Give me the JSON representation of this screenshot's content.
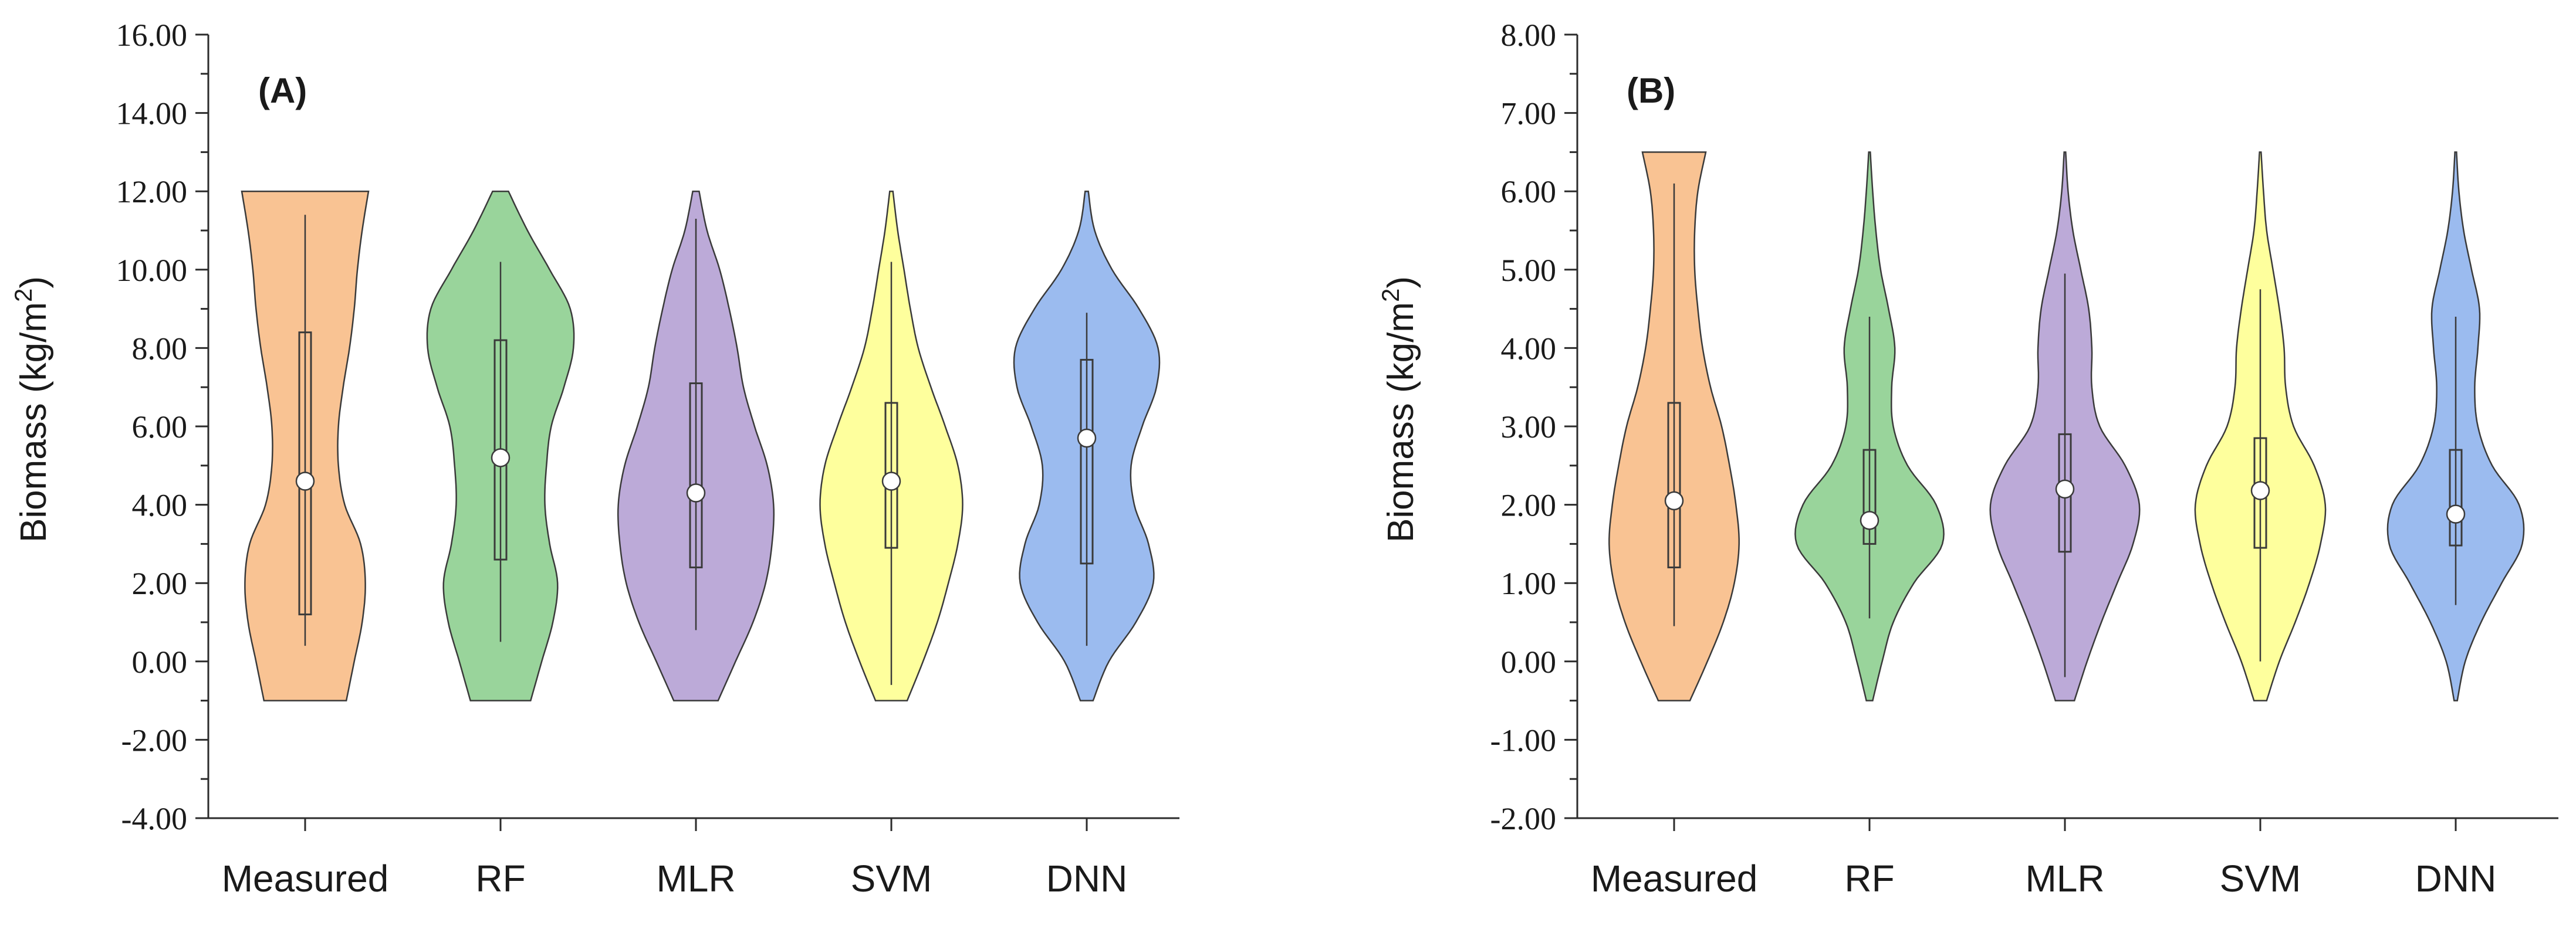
{
  "colors": {
    "Measured": "#f9c393",
    "RF": "#99d49b",
    "MLR": "#bcaad8",
    "SVM": "#feff9d",
    "DNN": "#9bbbef"
  },
  "chart_data": [
    {
      "type": "violin",
      "panel_label": "(A)",
      "title": "",
      "xlabel": "",
      "ylabel": "Biomass (kg/m",
      "ylabel_sup": "2",
      "ylabel_close": ")",
      "ylim": [
        -4,
        16
      ],
      "yticks": [
        "-4.00",
        "-2.00",
        "0.00",
        "2.00",
        "4.00",
        "6.00",
        "8.00",
        "10.00",
        "12.00",
        "14.00",
        "16.00"
      ],
      "categories": [
        "Measured",
        "RF",
        "MLR",
        "SVM",
        "DNN"
      ],
      "violins": [
        {
          "name": "Measured",
          "min": -1,
          "max": 12,
          "whisker_low": 0.4,
          "whisker_high": 11.4,
          "q1": 1.2,
          "q3": 8.4,
          "median": 4.6,
          "density": [
            [
              -1,
              0.52
            ],
            [
              0,
              0.62
            ],
            [
              1,
              0.72
            ],
            [
              2,
              0.76
            ],
            [
              3,
              0.7
            ],
            [
              4,
              0.5
            ],
            [
              5,
              0.42
            ],
            [
              6,
              0.42
            ],
            [
              7,
              0.48
            ],
            [
              8,
              0.56
            ],
            [
              9,
              0.62
            ],
            [
              10,
              0.66
            ],
            [
              11,
              0.72
            ],
            [
              12,
              0.8
            ]
          ]
        },
        {
          "name": "RF",
          "min": -1,
          "max": 12,
          "whisker_low": 0.5,
          "whisker_high": 10.2,
          "q1": 2.6,
          "q3": 8.2,
          "median": 5.2,
          "density": [
            [
              -1,
              0.38
            ],
            [
              0,
              0.52
            ],
            [
              1,
              0.66
            ],
            [
              2,
              0.72
            ],
            [
              3,
              0.62
            ],
            [
              4,
              0.56
            ],
            [
              5,
              0.58
            ],
            [
              6,
              0.64
            ],
            [
              7,
              0.8
            ],
            [
              8,
              0.92
            ],
            [
              9,
              0.88
            ],
            [
              10,
              0.62
            ],
            [
              11,
              0.34
            ],
            [
              12,
              0.1
            ]
          ]
        },
        {
          "name": "MLR",
          "min": -1,
          "max": 12,
          "whisker_low": 0.8,
          "whisker_high": 11.3,
          "q1": 2.4,
          "q3": 7.1,
          "median": 4.3,
          "density": [
            [
              -1,
              0.28
            ],
            [
              0,
              0.5
            ],
            [
              1,
              0.72
            ],
            [
              2,
              0.88
            ],
            [
              3,
              0.96
            ],
            [
              4,
              0.98
            ],
            [
              5,
              0.9
            ],
            [
              6,
              0.74
            ],
            [
              7,
              0.6
            ],
            [
              8,
              0.52
            ],
            [
              9,
              0.42
            ],
            [
              10,
              0.3
            ],
            [
              11,
              0.14
            ],
            [
              12,
              0.04
            ]
          ]
        },
        {
          "name": "SVM",
          "min": -1,
          "max": 12,
          "whisker_low": -0.6,
          "whisker_high": 10.2,
          "q1": 2.9,
          "q3": 6.6,
          "median": 4.6,
          "density": [
            [
              -1,
              0.2
            ],
            [
              0,
              0.4
            ],
            [
              1,
              0.58
            ],
            [
              2,
              0.72
            ],
            [
              3,
              0.84
            ],
            [
              4,
              0.9
            ],
            [
              5,
              0.84
            ],
            [
              6,
              0.68
            ],
            [
              7,
              0.5
            ],
            [
              8,
              0.34
            ],
            [
              9,
              0.24
            ],
            [
              10,
              0.16
            ],
            [
              11,
              0.08
            ],
            [
              12,
              0.02
            ]
          ]
        },
        {
          "name": "DNN",
          "min": -1,
          "max": 12,
          "whisker_low": 0.4,
          "whisker_high": 8.9,
          "q1": 2.5,
          "q3": 7.7,
          "median": 5.7,
          "density": [
            [
              -1,
              0.08
            ],
            [
              0,
              0.28
            ],
            [
              1,
              0.62
            ],
            [
              2,
              0.84
            ],
            [
              3,
              0.78
            ],
            [
              4,
              0.6
            ],
            [
              5,
              0.56
            ],
            [
              6,
              0.7
            ],
            [
              7,
              0.88
            ],
            [
              8,
              0.9
            ],
            [
              9,
              0.66
            ],
            [
              10,
              0.32
            ],
            [
              11,
              0.1
            ],
            [
              12,
              0.02
            ]
          ]
        }
      ]
    },
    {
      "type": "violin",
      "panel_label": "(B)",
      "title": "",
      "xlabel": "",
      "ylabel": "Biomass (kg/m",
      "ylabel_sup": "2",
      "ylabel_close": ")",
      "ylim": [
        -2,
        8
      ],
      "yticks": [
        "-2.00",
        "-1.00",
        "0.00",
        "1.00",
        "2.00",
        "3.00",
        "4.00",
        "5.00",
        "6.00",
        "7.00",
        "8.00"
      ],
      "categories": [
        "Measured",
        "RF",
        "MLR",
        "SVM",
        "DNN"
      ],
      "violins": [
        {
          "name": "Measured",
          "min": -0.5,
          "max": 6.5,
          "whisker_low": 0.45,
          "whisker_high": 6.1,
          "q1": 1.2,
          "q3": 3.3,
          "median": 2.05,
          "density": [
            [
              -0.5,
              0.2
            ],
            [
              0,
              0.42
            ],
            [
              0.5,
              0.62
            ],
            [
              1,
              0.76
            ],
            [
              1.5,
              0.82
            ],
            [
              2,
              0.78
            ],
            [
              2.5,
              0.7
            ],
            [
              3,
              0.6
            ],
            [
              3.5,
              0.46
            ],
            [
              4,
              0.36
            ],
            [
              4.5,
              0.3
            ],
            [
              5,
              0.26
            ],
            [
              5.5,
              0.26
            ],
            [
              6,
              0.3
            ],
            [
              6.5,
              0.4
            ]
          ]
        },
        {
          "name": "RF",
          "min": -0.5,
          "max": 6.5,
          "whisker_low": 0.55,
          "whisker_high": 4.4,
          "q1": 1.5,
          "q3": 2.7,
          "median": 1.8,
          "density": [
            [
              -0.5,
              0.04
            ],
            [
              0,
              0.16
            ],
            [
              0.5,
              0.3
            ],
            [
              1,
              0.56
            ],
            [
              1.5,
              0.92
            ],
            [
              2,
              0.84
            ],
            [
              2.5,
              0.48
            ],
            [
              3,
              0.3
            ],
            [
              3.5,
              0.28
            ],
            [
              4,
              0.32
            ],
            [
              4.5,
              0.24
            ],
            [
              5,
              0.14
            ],
            [
              5.5,
              0.08
            ],
            [
              6,
              0.04
            ],
            [
              6.5,
              0.01
            ]
          ]
        },
        {
          "name": "MLR",
          "min": -0.5,
          "max": 6.5,
          "whisker_low": -0.2,
          "whisker_high": 4.95,
          "q1": 1.4,
          "q3": 2.9,
          "median": 2.2,
          "density": [
            [
              -0.5,
              0.12
            ],
            [
              0,
              0.28
            ],
            [
              0.5,
              0.46
            ],
            [
              1,
              0.66
            ],
            [
              1.5,
              0.86
            ],
            [
              2,
              0.94
            ],
            [
              2.5,
              0.76
            ],
            [
              3,
              0.44
            ],
            [
              3.5,
              0.34
            ],
            [
              4,
              0.34
            ],
            [
              4.5,
              0.3
            ],
            [
              5,
              0.2
            ],
            [
              5.5,
              0.1
            ],
            [
              6,
              0.04
            ],
            [
              6.5,
              0.01
            ]
          ]
        },
        {
          "name": "SVM",
          "min": -0.5,
          "max": 6.5,
          "whisker_low": 0.0,
          "whisker_high": 4.75,
          "q1": 1.45,
          "q3": 2.85,
          "median": 2.18,
          "density": [
            [
              -0.5,
              0.08
            ],
            [
              0,
              0.24
            ],
            [
              0.5,
              0.44
            ],
            [
              1,
              0.62
            ],
            [
              1.5,
              0.76
            ],
            [
              2,
              0.82
            ],
            [
              2.5,
              0.68
            ],
            [
              3,
              0.42
            ],
            [
              3.5,
              0.32
            ],
            [
              4,
              0.3
            ],
            [
              4.5,
              0.24
            ],
            [
              5,
              0.16
            ],
            [
              5.5,
              0.08
            ],
            [
              6,
              0.04
            ],
            [
              6.5,
              0.01
            ]
          ]
        },
        {
          "name": "DNN",
          "min": -0.5,
          "max": 6.5,
          "whisker_low": 0.72,
          "whisker_high": 4.4,
          "q1": 1.48,
          "q3": 2.7,
          "median": 1.88,
          "density": [
            [
              -0.5,
              0.02
            ],
            [
              0,
              0.12
            ],
            [
              0.5,
              0.32
            ],
            [
              1,
              0.58
            ],
            [
              1.5,
              0.84
            ],
            [
              2,
              0.8
            ],
            [
              2.5,
              0.46
            ],
            [
              3,
              0.28
            ],
            [
              3.5,
              0.24
            ],
            [
              4,
              0.28
            ],
            [
              4.5,
              0.3
            ],
            [
              5,
              0.2
            ],
            [
              5.5,
              0.1
            ],
            [
              6,
              0.04
            ],
            [
              6.5,
              0.01
            ]
          ]
        }
      ]
    }
  ]
}
